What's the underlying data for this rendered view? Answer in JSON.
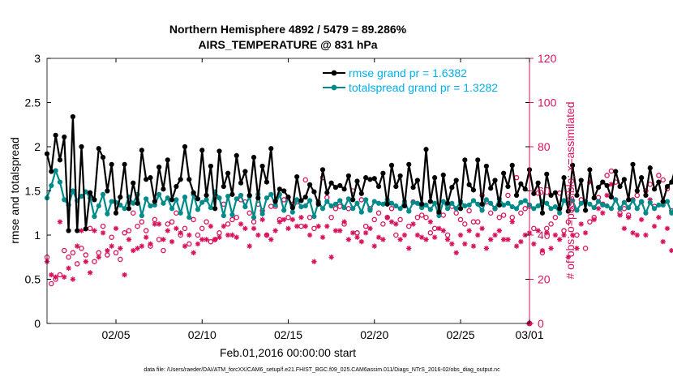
{
  "chart_data": {
    "type": "line",
    "title": "Northern Hemisphere 4892 / 5479 = 89.286%",
    "subtitle": "AIRS_TEMPERATURE @ 831 hPa",
    "xlabel": "Feb.01,2016 00:00:00 start",
    "ylabel": "rmse and totalspread",
    "y2label": "# of obs: o=possible; ×=assimilated",
    "footnote": "data file: /Users/raeder/DAI/ATM_forcXX/CAM6_setup/f.e21.FHIST_BGC.f09_025.CAM6assim.011/Diags_NTrS_2016-02/obs_diag_output.nc",
    "xlim": [
      1,
      29
    ],
    "x_ticks": [
      5,
      10,
      15,
      20,
      25,
      29
    ],
    "x_tick_labels": [
      "02/05",
      "02/10",
      "02/15",
      "02/20",
      "02/25",
      "03/01"
    ],
    "ylim": [
      0,
      3
    ],
    "y_ticks": [
      "0",
      "0.5",
      "1",
      "1.5",
      "2",
      "2.5",
      "3"
    ],
    "y2lim": [
      0,
      120
    ],
    "y2_ticks": [
      "0",
      "20",
      "40",
      "60",
      "80",
      "100",
      "120"
    ],
    "legend_position": "top-right",
    "grid": false,
    "x_start": 1.0,
    "x_step": 0.25,
    "series": [
      {
        "name": "rmse grand pr = 1.6382",
        "color": "#000000",
        "axis": "left",
        "values": [
          1.92,
          1.72,
          2.13,
          1.85,
          2.11,
          1.05,
          2.34,
          1.05,
          2.0,
          1.07,
          1.48,
          1.4,
          1.98,
          1.88,
          1.5,
          1.8,
          1.25,
          1.43,
          1.8,
          1.3,
          1.59,
          1.36,
          1.96,
          1.63,
          1.65,
          1.38,
          1.77,
          1.52,
          1.85,
          1.4,
          1.55,
          1.63,
          2.0,
          1.63,
          1.48,
          1.41,
          1.96,
          1.45,
          1.78,
          1.3,
          1.95,
          1.55,
          1.7,
          1.46,
          1.9,
          1.59,
          1.72,
          1.45,
          1.88,
          1.42,
          1.78,
          1.6,
          1.98,
          1.38,
          1.52,
          1.5,
          1.43,
          1.31,
          1.66,
          1.39,
          1.43,
          1.57,
          1.49,
          1.35,
          1.74,
          1.48,
          1.59,
          1.54,
          1.56,
          1.52,
          1.67,
          1.4,
          1.61,
          1.47,
          1.65,
          1.63,
          1.64,
          1.55,
          1.7,
          1.35,
          1.79,
          1.55,
          1.67,
          1.33,
          1.8,
          1.54,
          1.62,
          1.35,
          1.97,
          1.38,
          1.65,
          1.26,
          1.68,
          1.36,
          1.54,
          1.62,
          1.3,
          1.85,
          1.57,
          1.51,
          1.85,
          1.35,
          1.78,
          1.53,
          1.62,
          1.34,
          1.7,
          1.55,
          1.79,
          1.45,
          1.58,
          1.52,
          1.74,
          1.47,
          1.59,
          1.25,
          1.69,
          1.45,
          1.48,
          1.3,
          1.65,
          1.27,
          1.79,
          1.45,
          1.62,
          1.28,
          1.74,
          1.42,
          1.54,
          1.6,
          1.56,
          1.43,
          1.72,
          1.55,
          1.63,
          1.4,
          1.8,
          1.5,
          1.65,
          1.45,
          1.76,
          1.52,
          1.6,
          1.38,
          1.55,
          1.6,
          1.78,
          1.35,
          1.71,
          1.55,
          1.67,
          1.45,
          1.82,
          1.5,
          1.72,
          1.4,
          1.92,
          1.45,
          1.65,
          1.58,
          1.52,
          1.48,
          1.68,
          1.35,
          1.9,
          1.55,
          1.78,
          1.6,
          1.62,
          1.45,
          1.8,
          1.5,
          1.88,
          1.42,
          1.62,
          1.55,
          1.68,
          1.5,
          1.72,
          1.32,
          1.6,
          1.28,
          1.58,
          1.5,
          1.65,
          1.38,
          1.7,
          1.57,
          1.8,
          1.5,
          1.66,
          1.42,
          1.88,
          1.63,
          1.79,
          1.62,
          1.82,
          1.49,
          1.97,
          1.43,
          1.7,
          1.27,
          1.9,
          1.81,
          1.78
        ]
      },
      {
        "name": "totalspread grand pr = 1.3282",
        "color": "#008b8b",
        "axis": "left",
        "values": [
          1.42,
          1.56,
          1.73,
          1.6,
          1.4,
          1.34,
          1.5,
          1.39,
          1.44,
          1.49,
          1.42,
          1.21,
          1.33,
          1.46,
          1.24,
          1.38,
          1.37,
          1.34,
          1.3,
          1.43,
          1.36,
          1.46,
          1.22,
          1.41,
          1.33,
          1.34,
          1.46,
          1.36,
          1.42,
          1.3,
          1.4,
          1.25,
          1.43,
          1.2,
          1.46,
          1.29,
          1.37,
          1.4,
          1.31,
          1.49,
          1.42,
          1.22,
          1.44,
          1.23,
          1.41,
          1.45,
          1.32,
          1.44,
          1.2,
          1.46,
          1.24,
          1.42,
          1.46,
          1.34,
          1.46,
          1.28,
          1.43,
          1.26,
          1.4,
          1.32,
          1.33,
          1.39,
          1.21,
          1.37,
          1.3,
          1.38,
          1.33,
          1.35,
          1.39,
          1.31,
          1.41,
          1.3,
          1.36,
          1.26,
          1.4,
          1.28,
          1.38,
          1.36,
          1.35,
          1.4,
          1.36,
          1.33,
          1.3,
          1.38,
          1.27,
          1.37,
          1.36,
          1.31,
          1.34,
          1.29,
          1.36,
          1.22,
          1.38,
          1.3,
          1.36,
          1.3,
          1.38,
          1.33,
          1.34,
          1.39,
          1.35,
          1.28,
          1.4,
          1.36,
          1.3,
          1.41,
          1.34,
          1.36,
          1.32,
          1.3,
          1.37,
          1.39,
          1.34,
          1.3,
          1.33,
          1.38,
          1.36,
          1.3,
          1.32,
          1.25,
          1.39,
          1.35,
          1.39,
          1.28,
          1.36,
          1.38,
          1.35,
          1.31,
          1.38,
          1.34,
          1.33,
          1.3,
          1.4,
          1.3,
          1.37,
          1.31,
          1.39,
          1.3,
          1.38,
          1.25,
          1.37,
          1.3,
          1.34,
          1.34,
          1.38,
          1.25,
          1.36,
          1.3,
          1.4,
          1.31,
          1.4,
          1.38,
          1.33,
          1.3,
          1.35,
          1.29,
          1.4,
          1.28,
          1.35,
          1.28,
          1.36,
          1.34,
          1.37,
          1.29,
          1.35,
          1.3,
          1.39,
          1.27,
          1.38,
          1.34,
          1.3,
          1.34,
          1.4,
          1.28,
          1.35,
          1.36,
          1.31,
          1.27,
          1.38,
          1.32,
          1.28,
          1.33,
          1.4,
          1.28,
          1.37,
          1.33,
          1.4,
          1.27,
          1.32,
          1.29,
          1.42,
          1.3,
          1.38,
          1.29,
          1.35,
          1.28,
          1.42,
          1.3,
          1.39,
          1.29,
          1.4,
          1.45,
          1.5,
          1.48,
          1.53,
          1.54
        ]
      },
      {
        "name": "possible",
        "color": "#d8135d",
        "axis": "right",
        "marker": "circle",
        "values": [
          30,
          18,
          20,
          22,
          33,
          30,
          32,
          27,
          34,
          31,
          43,
          28,
          32,
          44,
          31,
          39,
          32,
          29,
          41,
          42,
          50,
          44,
          46,
          42,
          35,
          47,
          38,
          33,
          45,
          46,
          50,
          40,
          43,
          36,
          47,
          40,
          43,
          46,
          37,
          38,
          41,
          54,
          45,
          47,
          48,
          56,
          55,
          50,
          46,
          54,
          51,
          40,
          53,
          53,
          47,
          56,
          48,
          54,
          55,
          44,
          65,
          48,
          43,
          55,
          66,
          57,
          48,
          52,
          53,
          45,
          52,
          60,
          41,
          56,
          44,
          52,
          47,
          50,
          45,
          48,
          52,
          40,
          47,
          54,
          44,
          55,
          48,
          49,
          48,
          41,
          43,
          50,
          49,
          40,
          53,
          50,
          47,
          45,
          51,
          46,
          46,
          58,
          55,
          50,
          52,
          48,
          49,
          58,
          48,
          66,
          50,
          52,
          53,
          43,
          59,
          32,
          43,
          45,
          48,
          59,
          42,
          46,
          52,
          40,
          56,
          34,
          46,
          48,
          57,
          54,
          67,
          69,
          64,
          50,
          52,
          49,
          56,
          58,
          55,
          60,
          63,
          53,
          67,
          65,
          61,
          51,
          58,
          55,
          57,
          52,
          68,
          54,
          62,
          60,
          64,
          60,
          59,
          58,
          53,
          60,
          69,
          67,
          62,
          56,
          57,
          57,
          55,
          51,
          59,
          54,
          65,
          51,
          50,
          60,
          57,
          61,
          45,
          55,
          50,
          52,
          48,
          58,
          55,
          53,
          61,
          55,
          56,
          54,
          56,
          54,
          56,
          56,
          57,
          43,
          50,
          48,
          51,
          47,
          58,
          55,
          60,
          59,
          43,
          39,
          62,
          61,
          62
        ]
      },
      {
        "name": "assimilated",
        "color": "#d8135d",
        "axis": "right",
        "marker": "asterisk",
        "values": [
          28,
          22,
          21,
          46,
          21,
          25,
          20,
          35,
          42,
          28,
          23,
          42,
          30,
          41,
          33,
          35,
          43,
          34,
          22,
          38,
          33,
          34,
          35,
          39,
          36,
          45,
          45,
          38,
          42,
          37,
          43,
          41,
          35,
          40,
          32,
          36,
          38,
          38,
          44,
          38,
          39,
          44,
          40,
          40,
          39,
          45,
          43,
          35,
          43,
          40,
          47,
          40,
          38,
          42,
          46,
          47,
          43,
          47,
          44,
          48,
          44,
          40,
          28,
          44,
          39,
          44,
          30,
          42,
          42,
          46,
          38,
          41,
          39,
          37,
          41,
          43,
          35,
          39,
          38,
          48,
          46,
          45,
          38,
          40,
          34,
          45,
          40,
          39,
          38,
          46,
          39,
          43,
          42,
          38,
          36,
          32,
          40,
          36,
          42,
          35,
          40,
          43,
          34,
          38,
          40,
          42,
          38,
          38,
          46,
          35,
          37,
          40,
          41,
          36,
          42,
          33,
          41,
          34,
          40,
          38,
          40,
          30,
          40,
          34,
          45,
          41,
          64,
          47,
          52,
          50,
          58,
          63,
          56,
          49,
          43,
          48,
          41,
          40,
          47,
          40,
          56,
          44,
          48,
          37,
          43,
          33,
          44,
          46,
          48,
          42,
          44,
          46,
          40,
          42,
          44,
          47,
          59,
          41,
          44,
          47,
          40,
          44,
          45,
          44,
          48,
          46,
          48,
          47,
          46,
          44,
          46,
          43,
          55,
          50,
          45,
          48,
          43,
          44,
          47,
          45,
          43,
          48,
          46,
          44,
          44,
          45,
          43,
          48,
          44,
          45,
          46,
          45,
          44,
          42,
          47,
          46,
          43,
          48,
          42,
          40,
          39,
          36,
          35,
          40,
          36,
          33,
          33
        ]
      }
    ]
  }
}
